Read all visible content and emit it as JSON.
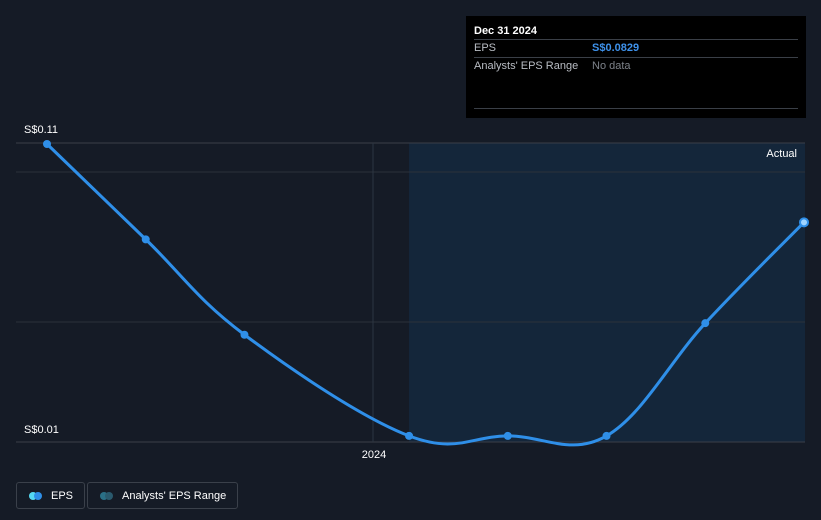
{
  "tooltip": {
    "date": "Dec 31 2024",
    "rows": [
      {
        "label": "EPS",
        "value": "S$0.0829"
      },
      {
        "label": "Analysts' EPS Range",
        "value": "No data"
      }
    ]
  },
  "legend": {
    "items": [
      {
        "label": "EPS",
        "color_a": "#55d9f2",
        "color_b": "#2f8fe8"
      },
      {
        "label": "Analysts' EPS Range",
        "color_a": "#2a6f86",
        "color_b": "#2a5a6e"
      }
    ]
  },
  "region_label": "Actual",
  "colors": {
    "background": "#151b26",
    "actual_region": "#14263a",
    "line": "#2f8fe8",
    "grid": "#2c313b"
  },
  "chart_data": {
    "type": "line",
    "title": "",
    "xlabel": "",
    "ylabel": "",
    "y_tick_labels": [
      "S$0.11",
      "S$0.01"
    ],
    "ylim": [
      0.01,
      0.11
    ],
    "x_tick_labels": [
      "2024"
    ],
    "series": [
      {
        "name": "EPS",
        "points": [
          {
            "x": "2023-01",
            "y": 0.11
          },
          {
            "x": "2023-04",
            "y": 0.077
          },
          {
            "x": "2023-07",
            "y": 0.044
          },
          {
            "x": "2023-12",
            "y": 0.009
          },
          {
            "x": "2024-03",
            "y": 0.009
          },
          {
            "x": "2024-06",
            "y": 0.009
          },
          {
            "x": "2024-09",
            "y": 0.048
          },
          {
            "x": "2024-12",
            "y": 0.0829
          }
        ]
      }
    ],
    "grid": true,
    "actual_region_start": "2023-12"
  }
}
